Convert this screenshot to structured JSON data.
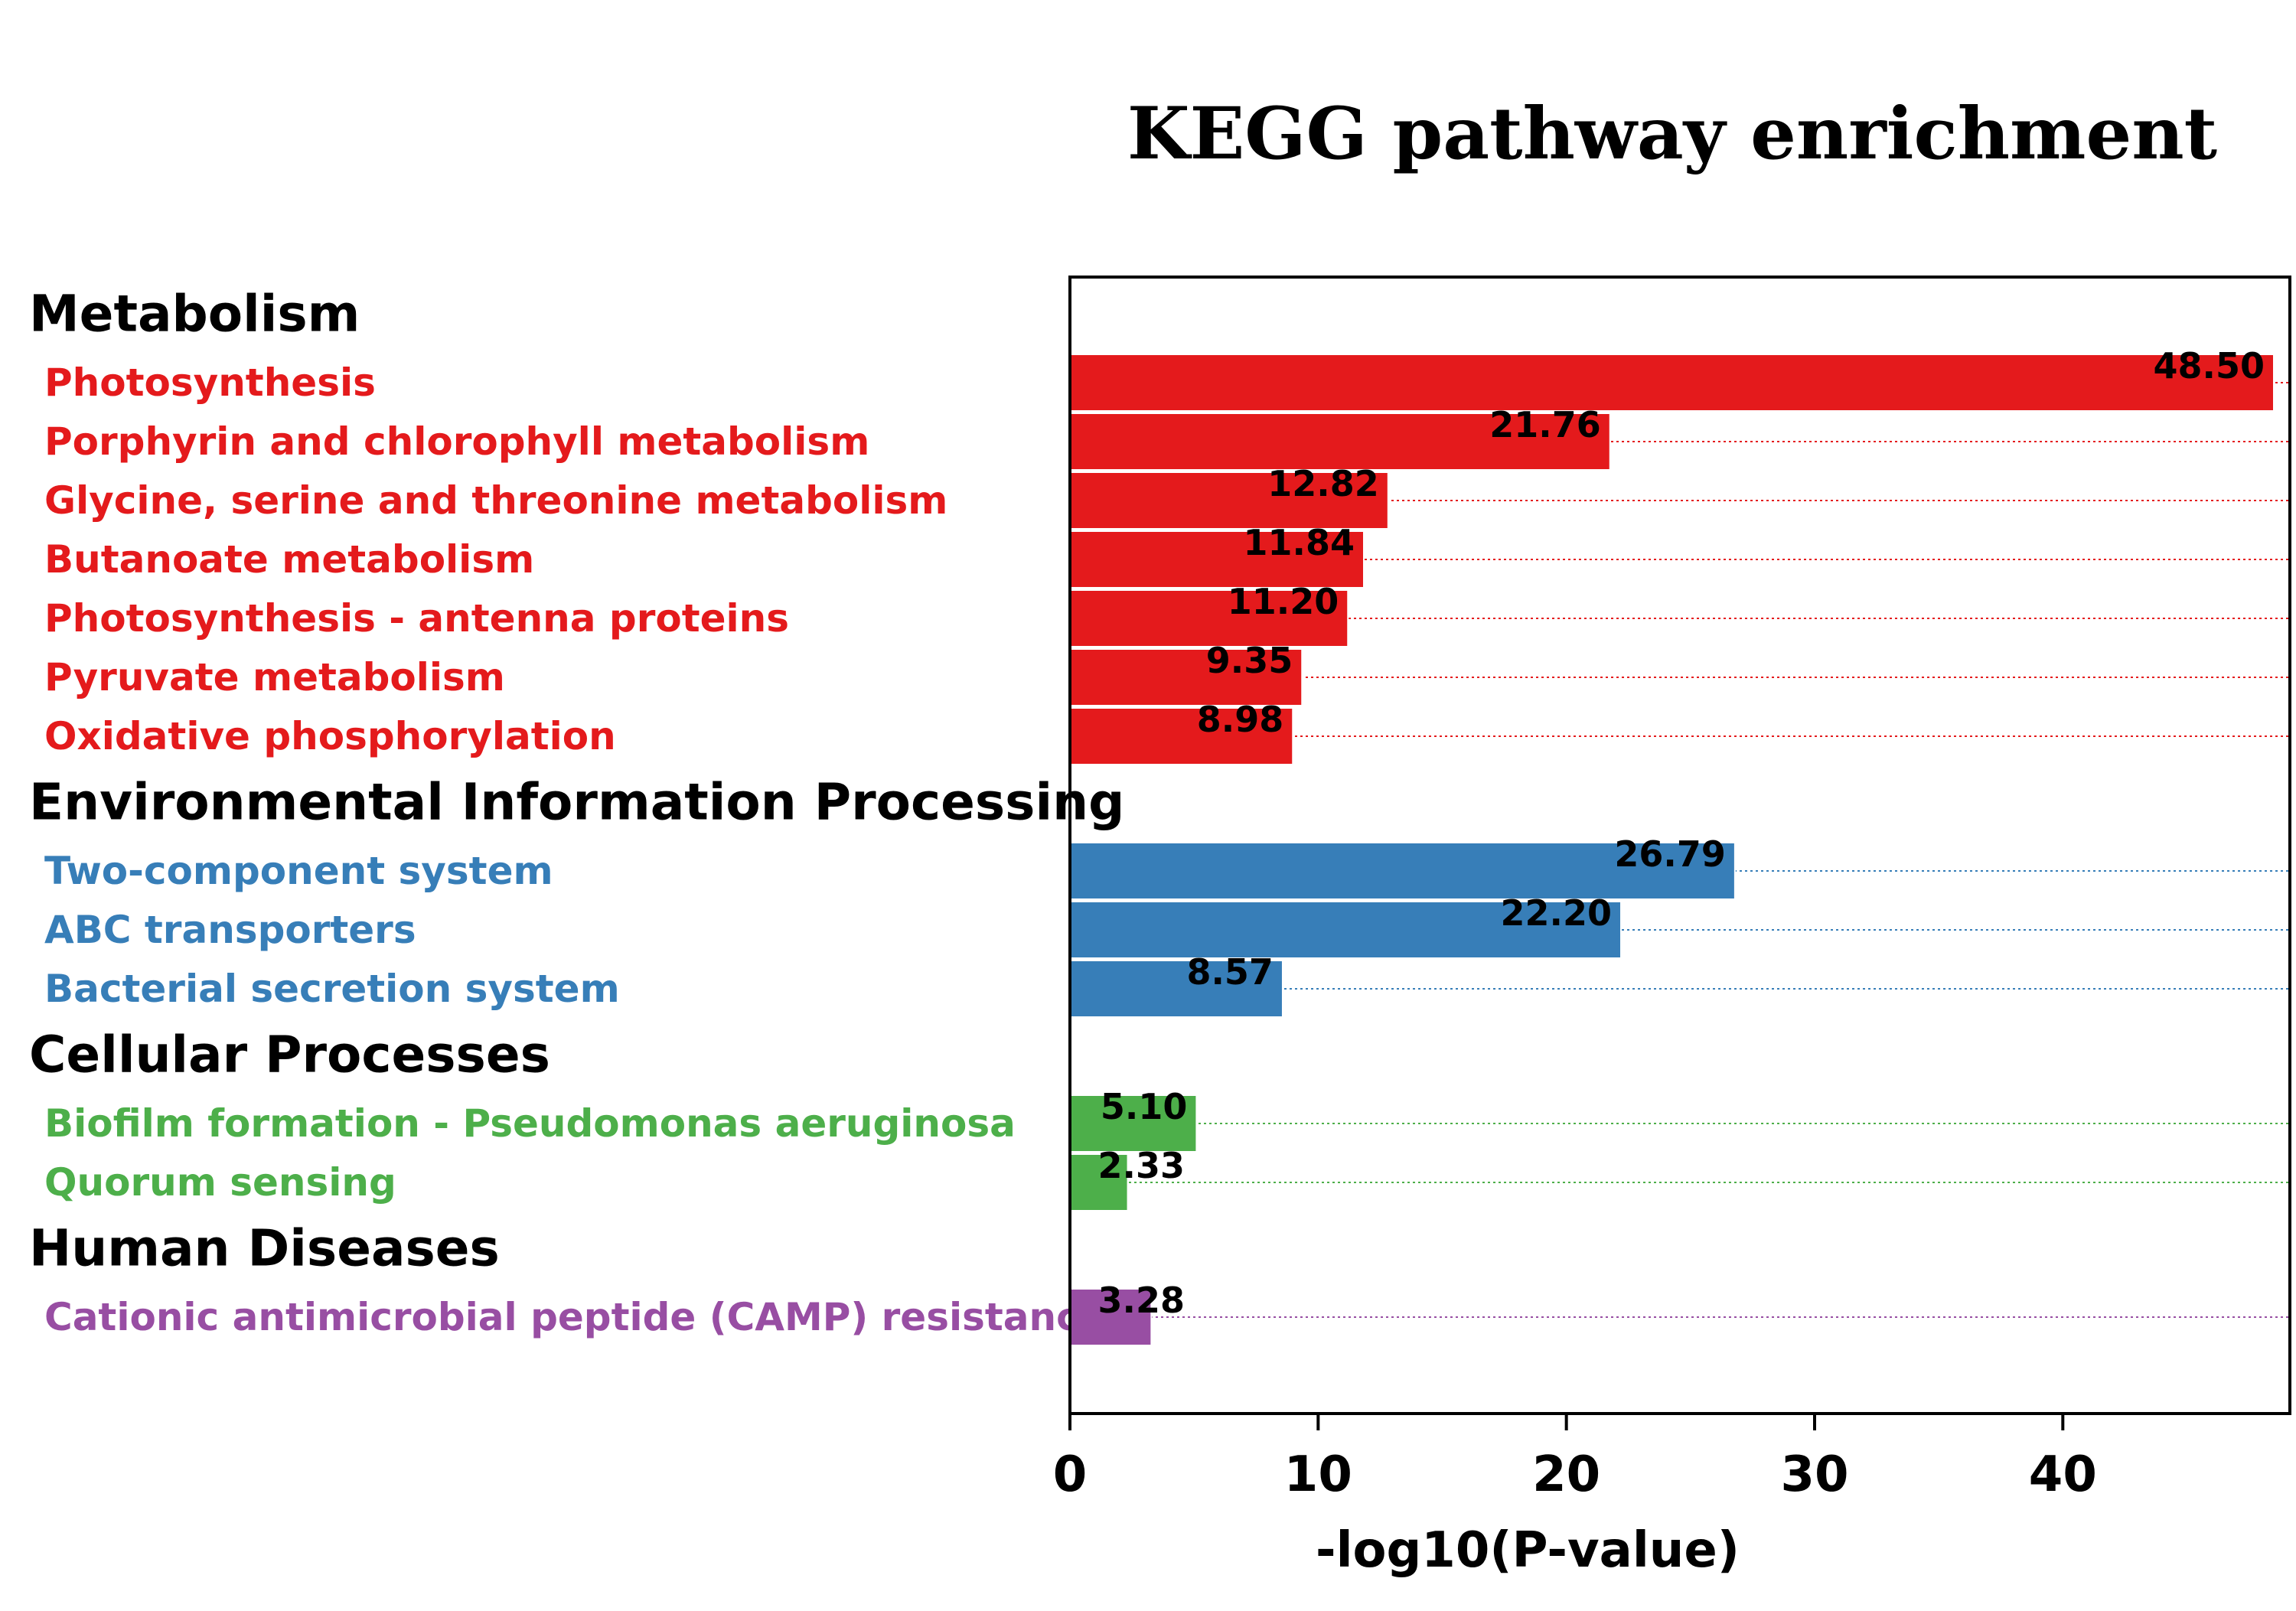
{
  "chart_data": {
    "type": "bar",
    "orientation": "horizontal",
    "title": "KEGG pathway enrichment",
    "xlabel": "-log10(P-value)",
    "ylabel": "",
    "xlim": [
      0,
      48.5
    ],
    "xticks": [
      0,
      10,
      20,
      30,
      40
    ],
    "grid": "dotted row guides",
    "legend": "none",
    "groups": [
      {
        "name": "Metabolism",
        "color": "#e41a1c",
        "items": [
          {
            "label": "Photosynthesis",
            "value": 48.5,
            "value_label": "48.50"
          },
          {
            "label": "Porphyrin and chlorophyll metabolism",
            "value": 21.76,
            "value_label": "21.76"
          },
          {
            "label": "Glycine, serine and threonine metabolism",
            "value": 12.82,
            "value_label": "12.82"
          },
          {
            "label": "Butanoate metabolism",
            "value": 11.84,
            "value_label": "11.84"
          },
          {
            "label": "Photosynthesis - antenna proteins",
            "value": 11.2,
            "value_label": "11.20"
          },
          {
            "label": "Pyruvate metabolism",
            "value": 9.35,
            "value_label": "9.35"
          },
          {
            "label": "Oxidative phosphorylation",
            "value": 8.98,
            "value_label": "8.98"
          }
        ]
      },
      {
        "name": "Environmental Information Processing",
        "color": "#377eb8",
        "items": [
          {
            "label": "Two-component system",
            "value": 26.79,
            "value_label": "26.79"
          },
          {
            "label": "ABC transporters",
            "value": 22.2,
            "value_label": "22.20"
          },
          {
            "label": "Bacterial secretion system",
            "value": 8.57,
            "value_label": "8.57"
          }
        ]
      },
      {
        "name": "Cellular Processes",
        "color": "#4daf4a",
        "items": [
          {
            "label": "Biofilm formation - Pseudomonas aeruginosa",
            "value": 5.1,
            "value_label": "5.10"
          },
          {
            "label": "Quorum sensing",
            "value": 2.33,
            "value_label": "2.33"
          }
        ]
      },
      {
        "name": "Human Diseases",
        "color": "#984ea3",
        "items": [
          {
            "label": "Cationic antimicrobial peptide (CAMP) resistance",
            "value": 3.28,
            "value_label": "3.28"
          }
        ]
      }
    ]
  }
}
